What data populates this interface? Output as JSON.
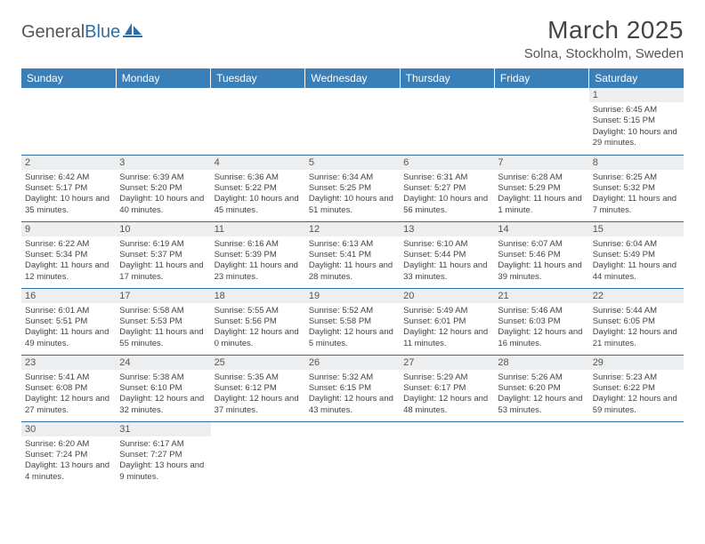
{
  "logo": {
    "text1": "General",
    "text2": "Blue"
  },
  "title": "March 2025",
  "location": "Solna, Stockholm, Sweden",
  "colors": {
    "header_bg": "#3b7fb8",
    "header_text": "#ffffff",
    "daynum_bg": "#eceeef",
    "border": "#2f6fa7",
    "logo_blue": "#2f6fa7"
  },
  "weekdays": [
    "Sunday",
    "Monday",
    "Tuesday",
    "Wednesday",
    "Thursday",
    "Friday",
    "Saturday"
  ],
  "weeks": [
    [
      null,
      null,
      null,
      null,
      null,
      null,
      {
        "n": "1",
        "sr": "Sunrise: 6:45 AM",
        "ss": "Sunset: 5:15 PM",
        "dl": "Daylight: 10 hours and 29 minutes."
      }
    ],
    [
      {
        "n": "2",
        "sr": "Sunrise: 6:42 AM",
        "ss": "Sunset: 5:17 PM",
        "dl": "Daylight: 10 hours and 35 minutes."
      },
      {
        "n": "3",
        "sr": "Sunrise: 6:39 AM",
        "ss": "Sunset: 5:20 PM",
        "dl": "Daylight: 10 hours and 40 minutes."
      },
      {
        "n": "4",
        "sr": "Sunrise: 6:36 AM",
        "ss": "Sunset: 5:22 PM",
        "dl": "Daylight: 10 hours and 45 minutes."
      },
      {
        "n": "5",
        "sr": "Sunrise: 6:34 AM",
        "ss": "Sunset: 5:25 PM",
        "dl": "Daylight: 10 hours and 51 minutes."
      },
      {
        "n": "6",
        "sr": "Sunrise: 6:31 AM",
        "ss": "Sunset: 5:27 PM",
        "dl": "Daylight: 10 hours and 56 minutes."
      },
      {
        "n": "7",
        "sr": "Sunrise: 6:28 AM",
        "ss": "Sunset: 5:29 PM",
        "dl": "Daylight: 11 hours and 1 minute."
      },
      {
        "n": "8",
        "sr": "Sunrise: 6:25 AM",
        "ss": "Sunset: 5:32 PM",
        "dl": "Daylight: 11 hours and 7 minutes."
      }
    ],
    [
      {
        "n": "9",
        "sr": "Sunrise: 6:22 AM",
        "ss": "Sunset: 5:34 PM",
        "dl": "Daylight: 11 hours and 12 minutes."
      },
      {
        "n": "10",
        "sr": "Sunrise: 6:19 AM",
        "ss": "Sunset: 5:37 PM",
        "dl": "Daylight: 11 hours and 17 minutes."
      },
      {
        "n": "11",
        "sr": "Sunrise: 6:16 AM",
        "ss": "Sunset: 5:39 PM",
        "dl": "Daylight: 11 hours and 23 minutes."
      },
      {
        "n": "12",
        "sr": "Sunrise: 6:13 AM",
        "ss": "Sunset: 5:41 PM",
        "dl": "Daylight: 11 hours and 28 minutes."
      },
      {
        "n": "13",
        "sr": "Sunrise: 6:10 AM",
        "ss": "Sunset: 5:44 PM",
        "dl": "Daylight: 11 hours and 33 minutes."
      },
      {
        "n": "14",
        "sr": "Sunrise: 6:07 AM",
        "ss": "Sunset: 5:46 PM",
        "dl": "Daylight: 11 hours and 39 minutes."
      },
      {
        "n": "15",
        "sr": "Sunrise: 6:04 AM",
        "ss": "Sunset: 5:49 PM",
        "dl": "Daylight: 11 hours and 44 minutes."
      }
    ],
    [
      {
        "n": "16",
        "sr": "Sunrise: 6:01 AM",
        "ss": "Sunset: 5:51 PM",
        "dl": "Daylight: 11 hours and 49 minutes."
      },
      {
        "n": "17",
        "sr": "Sunrise: 5:58 AM",
        "ss": "Sunset: 5:53 PM",
        "dl": "Daylight: 11 hours and 55 minutes."
      },
      {
        "n": "18",
        "sr": "Sunrise: 5:55 AM",
        "ss": "Sunset: 5:56 PM",
        "dl": "Daylight: 12 hours and 0 minutes."
      },
      {
        "n": "19",
        "sr": "Sunrise: 5:52 AM",
        "ss": "Sunset: 5:58 PM",
        "dl": "Daylight: 12 hours and 5 minutes."
      },
      {
        "n": "20",
        "sr": "Sunrise: 5:49 AM",
        "ss": "Sunset: 6:01 PM",
        "dl": "Daylight: 12 hours and 11 minutes."
      },
      {
        "n": "21",
        "sr": "Sunrise: 5:46 AM",
        "ss": "Sunset: 6:03 PM",
        "dl": "Daylight: 12 hours and 16 minutes."
      },
      {
        "n": "22",
        "sr": "Sunrise: 5:44 AM",
        "ss": "Sunset: 6:05 PM",
        "dl": "Daylight: 12 hours and 21 minutes."
      }
    ],
    [
      {
        "n": "23",
        "sr": "Sunrise: 5:41 AM",
        "ss": "Sunset: 6:08 PM",
        "dl": "Daylight: 12 hours and 27 minutes."
      },
      {
        "n": "24",
        "sr": "Sunrise: 5:38 AM",
        "ss": "Sunset: 6:10 PM",
        "dl": "Daylight: 12 hours and 32 minutes."
      },
      {
        "n": "25",
        "sr": "Sunrise: 5:35 AM",
        "ss": "Sunset: 6:12 PM",
        "dl": "Daylight: 12 hours and 37 minutes."
      },
      {
        "n": "26",
        "sr": "Sunrise: 5:32 AM",
        "ss": "Sunset: 6:15 PM",
        "dl": "Daylight: 12 hours and 43 minutes."
      },
      {
        "n": "27",
        "sr": "Sunrise: 5:29 AM",
        "ss": "Sunset: 6:17 PM",
        "dl": "Daylight: 12 hours and 48 minutes."
      },
      {
        "n": "28",
        "sr": "Sunrise: 5:26 AM",
        "ss": "Sunset: 6:20 PM",
        "dl": "Daylight: 12 hours and 53 minutes."
      },
      {
        "n": "29",
        "sr": "Sunrise: 5:23 AM",
        "ss": "Sunset: 6:22 PM",
        "dl": "Daylight: 12 hours and 59 minutes."
      }
    ],
    [
      {
        "n": "30",
        "sr": "Sunrise: 6:20 AM",
        "ss": "Sunset: 7:24 PM",
        "dl": "Daylight: 13 hours and 4 minutes."
      },
      {
        "n": "31",
        "sr": "Sunrise: 6:17 AM",
        "ss": "Sunset: 7:27 PM",
        "dl": "Daylight: 13 hours and 9 minutes."
      },
      null,
      null,
      null,
      null,
      null
    ]
  ]
}
